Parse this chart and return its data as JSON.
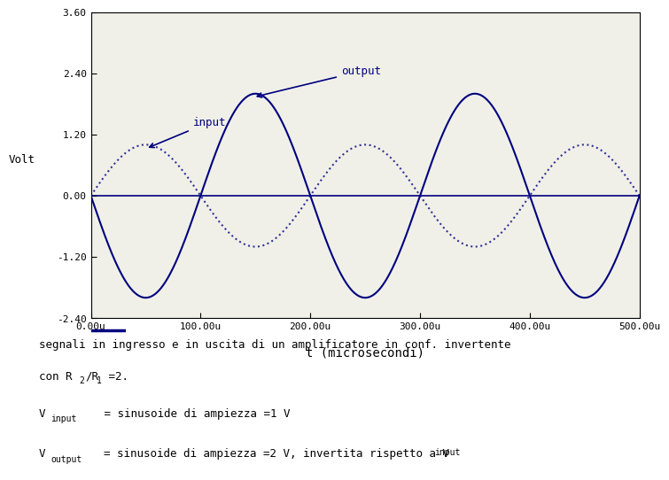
{
  "title": "",
  "xlabel": "t (microsecondi)",
  "ylabel": "Volt",
  "xlim": [
    0,
    500
  ],
  "ylim": [
    -2.4,
    3.6
  ],
  "yticks": [
    -2.4,
    -1.2,
    0.0,
    1.2,
    2.4,
    3.6
  ],
  "xticks": [
    0,
    100,
    200,
    300,
    400,
    500
  ],
  "xtick_labels": [
    "0.00u",
    "100.00u",
    "200.00u",
    "300.00u",
    "400.00u",
    "500.00u"
  ],
  "input_amplitude": 1.0,
  "output_amplitude": 2.0,
  "period_us": 200,
  "input_color": "#333399",
  "output_color": "#000080",
  "zero_line_color": "#000080",
  "bg_color": "#ffffff",
  "plot_bg_color": "#f0f0e8",
  "font_family": "monospace"
}
